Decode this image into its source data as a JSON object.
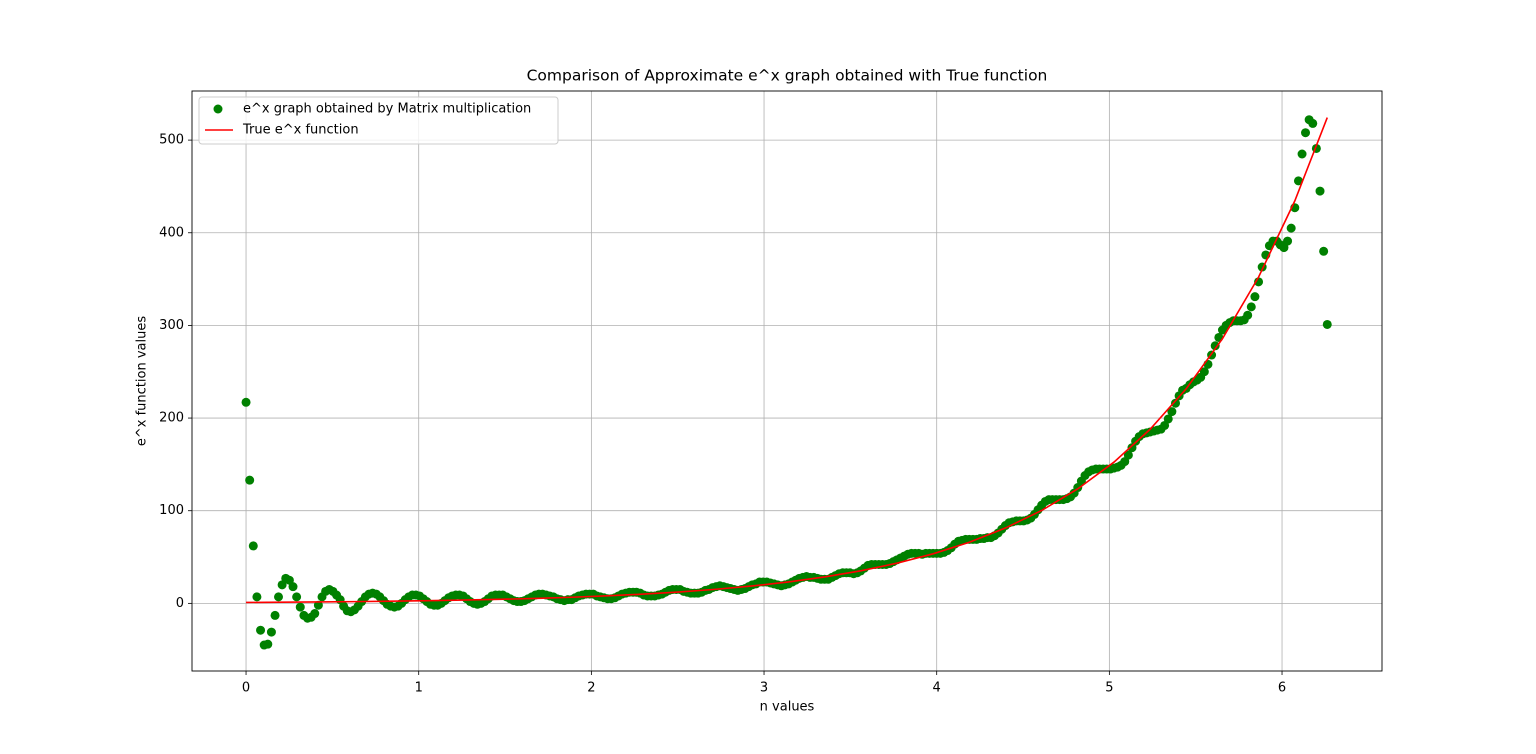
{
  "chart_data": {
    "type": "scatter",
    "title": "Comparison of Approximate e^x graph obtained with True function",
    "xlabel": "n values",
    "ylabel": "e^x function values",
    "xlim": [
      -0.313,
      6.579
    ],
    "ylim": [
      -73,
      553
    ],
    "xticks": [
      0,
      1,
      2,
      3,
      4,
      5,
      6
    ],
    "yticks": [
      0,
      100,
      200,
      300,
      400,
      500
    ],
    "grid": true,
    "legend": "upper left",
    "series": [
      {
        "name": "e^x graph obtained by Matrix multiplication",
        "color": "#008000",
        "style": "marker",
        "x": [
          0,
          0.021,
          0.042,
          0.063,
          0.084,
          0.105,
          0.126,
          0.147,
          0.168,
          0.188,
          0.209,
          0.23,
          0.251,
          0.272,
          0.293,
          0.314,
          0.335,
          0.356,
          0.377,
          0.398,
          0.419,
          0.44,
          0.461,
          0.482,
          0.503,
          0.524,
          0.545,
          0.565,
          0.586,
          0.607,
          0.628,
          0.649,
          0.67,
          0.691,
          0.712,
          0.733,
          0.754,
          0.775,
          0.796,
          0.817,
          0.838,
          0.859,
          0.88,
          0.901,
          0.922,
          0.942,
          0.963,
          0.984,
          1.005,
          1.026,
          1.047,
          1.068,
          1.089,
          1.11,
          1.131,
          1.152,
          1.173,
          1.194,
          1.215,
          1.236,
          1.257,
          1.277,
          1.298,
          1.319,
          1.34,
          1.361,
          1.382,
          1.403,
          1.424,
          1.445,
          1.466,
          1.487,
          1.508,
          1.529,
          1.55,
          1.571,
          1.592,
          1.613,
          1.634,
          1.655,
          1.676,
          1.696,
          1.717,
          1.738,
          1.759,
          1.78,
          1.801,
          1.822,
          1.843,
          1.864,
          1.885,
          1.906,
          1.927,
          1.948,
          1.969,
          1.99,
          2.011,
          2.032,
          2.052,
          2.073,
          2.094,
          2.115,
          2.136,
          2.157,
          2.178,
          2.199,
          2.22,
          2.241,
          2.262,
          2.283,
          2.304,
          2.325,
          2.346,
          2.367,
          2.388,
          2.409,
          2.429,
          2.45,
          2.471,
          2.492,
          2.513,
          2.534,
          2.555,
          2.576,
          2.597,
          2.618,
          2.639,
          2.66,
          2.681,
          2.702,
          2.723,
          2.744,
          2.765,
          2.785,
          2.806,
          2.827,
          2.848,
          2.869,
          2.89,
          2.911,
          2.932,
          2.953,
          2.974,
          2.995,
          3.016,
          3.037,
          3.058,
          3.079,
          3.1,
          3.121,
          3.142,
          3.163,
          3.183,
          3.204,
          3.225,
          3.246,
          3.267,
          3.288,
          3.309,
          3.33,
          3.351,
          3.372,
          3.393,
          3.414,
          3.435,
          3.456,
          3.477,
          3.498,
          3.519,
          3.54,
          3.56,
          3.581,
          3.602,
          3.623,
          3.644,
          3.665,
          3.686,
          3.707,
          3.728,
          3.749,
          3.77,
          3.791,
          3.812,
          3.833,
          3.854,
          3.875,
          3.896,
          3.916,
          3.937,
          3.958,
          3.979,
          4.0,
          4.021,
          4.042,
          4.063,
          4.084,
          4.105,
          4.126,
          4.147,
          4.168,
          4.189,
          4.21,
          4.231,
          4.252,
          4.273,
          4.294,
          4.314,
          4.335,
          4.356,
          4.377,
          4.398,
          4.419,
          4.44,
          4.461,
          4.482,
          4.503,
          4.524,
          4.545,
          4.566,
          4.587,
          4.608,
          4.629,
          4.65,
          4.67,
          4.691,
          4.712,
          4.733,
          4.754,
          4.775,
          4.796,
          4.817,
          4.838,
          4.859,
          4.88,
          4.901,
          4.922,
          4.943,
          4.964,
          4.985,
          5.006,
          5.027,
          5.047,
          5.068,
          5.089,
          5.11,
          5.131,
          5.152,
          5.173,
          5.194,
          5.215,
          5.236,
          5.257,
          5.278,
          5.299,
          5.32,
          5.341,
          5.362,
          5.383,
          5.404,
          5.424,
          5.445,
          5.466,
          5.487,
          5.508,
          5.529,
          5.55,
          5.571,
          5.592,
          5.613,
          5.634,
          5.655,
          5.676,
          5.697,
          5.718,
          5.739,
          5.76,
          5.781,
          5.801,
          5.822,
          5.843,
          5.864,
          5.885,
          5.906,
          5.927,
          5.948,
          5.969,
          5.99,
          6.011,
          6.032,
          6.053,
          6.074,
          6.095,
          6.116,
          6.136,
          6.157,
          6.178,
          6.199,
          6.22,
          6.241,
          6.262
        ],
        "values": [
          217,
          133,
          62,
          7,
          -29,
          -45,
          -44,
          -31,
          -13,
          7,
          20,
          27,
          25,
          18,
          7,
          -4,
          -13,
          -16,
          -15,
          -11,
          -2,
          7,
          13,
          15,
          13,
          9,
          4,
          -3,
          -8,
          -9,
          -7,
          -3,
          2,
          7,
          10,
          11,
          10,
          7,
          3,
          -1,
          -3,
          -4,
          -3,
          0,
          4,
          7,
          9,
          9,
          8,
          5,
          2,
          -1,
          -2,
          -2,
          0,
          3,
          6,
          8,
          9,
          9,
          8,
          5,
          2,
          0,
          -1,
          0,
          2,
          5,
          8,
          9,
          9,
          9,
          7,
          5,
          3,
          2,
          2,
          3,
          5,
          7,
          9,
          10,
          10,
          9,
          8,
          7,
          5,
          4,
          3,
          4,
          4,
          6,
          8,
          9,
          10,
          10,
          10,
          8,
          7,
          6,
          5,
          5,
          6,
          8,
          10,
          11,
          12,
          12,
          12,
          11,
          9,
          8,
          8,
          8,
          9,
          10,
          12,
          14,
          15,
          15,
          15,
          13,
          12,
          11,
          11,
          11,
          12,
          14,
          15,
          17,
          18,
          19,
          18,
          17,
          16,
          15,
          14,
          15,
          16,
          18,
          20,
          21,
          23,
          23,
          23,
          22,
          21,
          20,
          19,
          20,
          21,
          23,
          25,
          27,
          28,
          29,
          28,
          28,
          27,
          26,
          26,
          26,
          28,
          30,
          32,
          33,
          33,
          33,
          32,
          33,
          35,
          38,
          41,
          42,
          42,
          42,
          42,
          42,
          43,
          45,
          47,
          49,
          51,
          53,
          54,
          54,
          54,
          53,
          54,
          54,
          54,
          54,
          54,
          55,
          57,
          60,
          64,
          67,
          68,
          69,
          69,
          69,
          69,
          70,
          70,
          71,
          71,
          73,
          76,
          80,
          84,
          87,
          88,
          89,
          89,
          89,
          90,
          92,
          96,
          101,
          106,
          110,
          112,
          112,
          112,
          112,
          112,
          113,
          115,
          119,
          125,
          132,
          138,
          142,
          144,
          145,
          145,
          145,
          145,
          145,
          146,
          147,
          149,
          153,
          160,
          168,
          175,
          180,
          183,
          184,
          185,
          186,
          187,
          188,
          192,
          199,
          207,
          216,
          224,
          230,
          232,
          236,
          239,
          241,
          244,
          250,
          258,
          268,
          278,
          287,
          295,
          300,
          303,
          305,
          305,
          305,
          306,
          311,
          320,
          331,
          347,
          363,
          376,
          386,
          391,
          391,
          387,
          384,
          391,
          405,
          427,
          456,
          485,
          508,
          522,
          518,
          491,
          445,
          380,
          301
        ]
      },
      {
        "name": "True e^x function",
        "color": "#ff0000",
        "style": "line",
        "x": [
          0,
          0.209,
          0.419,
          0.628,
          0.838,
          1.047,
          1.257,
          1.466,
          1.676,
          1.885,
          2.094,
          2.304,
          2.513,
          2.723,
          2.932,
          3.142,
          3.351,
          3.56,
          3.77,
          3.979,
          4.189,
          4.398,
          4.608,
          4.817,
          5.027,
          5.236,
          5.445,
          5.655,
          5.864,
          6.074,
          6.262
        ],
        "values": [
          1,
          1.23,
          1.52,
          1.87,
          2.31,
          2.85,
          3.51,
          4.33,
          5.34,
          6.59,
          8.12,
          10.01,
          12.35,
          15.22,
          18.77,
          23.14,
          28.53,
          35.17,
          43.38,
          53.47,
          65.94,
          81.29,
          100.3,
          123.6,
          152.5,
          187.9,
          231.6,
          285.7,
          352.1,
          434.4,
          524.3
        ]
      }
    ]
  }
}
